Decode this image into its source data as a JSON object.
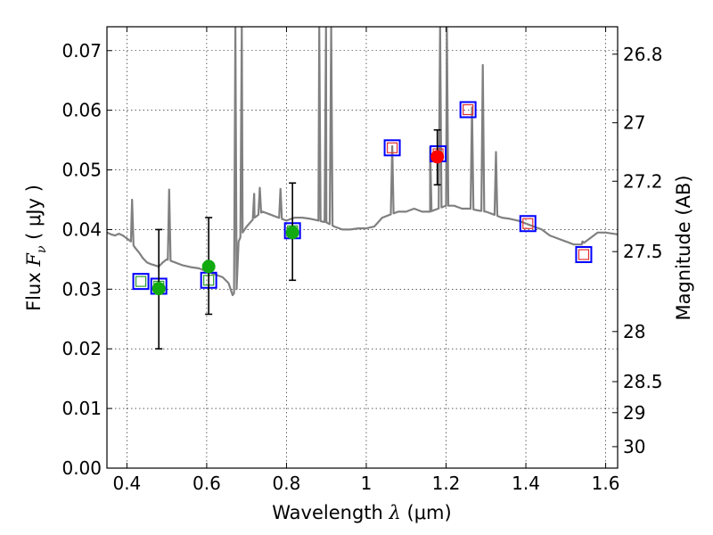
{
  "chart_data": {
    "type": "scatter",
    "xlabel": "Wavelength  λ (μm)",
    "ylabel": "Flux  F_ν  ( μJy )",
    "ylabel_parts": {
      "prefix": "Flux  ",
      "symbol": "F",
      "subscript": "ν",
      "suffix": "  ( μJy )"
    },
    "xlabel_parts": {
      "prefix": "Wavelength  ",
      "symbol": "λ",
      "suffix": " (μm)"
    },
    "y2label": "Magnitude (AB)",
    "xlim": [
      0.35,
      1.63
    ],
    "ylim": [
      0.0,
      0.074
    ],
    "grid": true,
    "x_ticks": [
      0.4,
      0.6,
      0.8,
      1.0,
      1.2,
      1.4,
      1.6
    ],
    "x_tick_labels": [
      "0.4",
      "0.6",
      "0.8",
      "1",
      "1.2",
      "1.4",
      "1.6"
    ],
    "y_ticks": [
      0.0,
      0.01,
      0.02,
      0.03,
      0.04,
      0.05,
      0.06,
      0.07
    ],
    "y_tick_labels": [
      "0.00",
      "0.01",
      "0.02",
      "0.03",
      "0.04",
      "0.05",
      "0.06",
      "0.07"
    ],
    "mag_ticks": [
      {
        "flux": 0.0694,
        "label": "26.8"
      },
      {
        "flux": 0.0579,
        "label": "27"
      },
      {
        "flux": 0.0481,
        "label": "27.2"
      },
      {
        "flux": 0.0363,
        "label": "27.5"
      },
      {
        "flux": 0.0229,
        "label": "28"
      },
      {
        "flux": 0.0145,
        "label": "28.5"
      },
      {
        "flux": 0.0093,
        "label": "29"
      },
      {
        "flux": 0.0036,
        "label": "30"
      }
    ],
    "series": [
      {
        "name": "template spectrum",
        "kind": "line",
        "color": "#808080",
        "x": [
          0.35,
          0.36,
          0.37,
          0.38,
          0.39,
          0.4,
          0.41,
          0.42,
          0.43,
          0.44,
          0.45,
          0.46,
          0.47,
          0.48,
          0.49,
          0.5,
          0.52,
          0.54,
          0.56,
          0.58,
          0.6,
          0.62,
          0.64,
          0.655,
          0.665,
          0.675,
          0.68,
          0.69,
          0.7,
          0.72,
          0.74,
          0.76,
          0.78,
          0.8,
          0.82,
          0.84,
          0.86,
          0.88,
          0.9,
          0.92,
          0.94,
          0.96,
          0.98,
          1.0,
          1.02,
          1.04,
          1.06,
          1.08,
          1.1,
          1.12,
          1.14,
          1.16,
          1.18,
          1.2,
          1.22,
          1.24,
          1.26,
          1.28,
          1.3,
          1.32,
          1.34,
          1.36,
          1.38,
          1.4,
          1.42,
          1.44,
          1.46,
          1.48,
          1.5,
          1.52,
          1.54,
          1.56,
          1.58,
          1.6,
          1.63
        ],
        "y": [
          0.0395,
          0.0392,
          0.039,
          0.0393,
          0.039,
          0.0385,
          0.038,
          0.037,
          0.0362,
          0.0352,
          0.0345,
          0.0342,
          0.034,
          0.0338,
          0.0345,
          0.035,
          0.0345,
          0.034,
          0.0337,
          0.0335,
          0.033,
          0.0325,
          0.032,
          0.031,
          0.029,
          0.03,
          0.038,
          0.0395,
          0.0405,
          0.042,
          0.043,
          0.0425,
          0.042,
          0.0415,
          0.042,
          0.042,
          0.0418,
          0.0415,
          0.0412,
          0.0405,
          0.04,
          0.04,
          0.0402,
          0.0402,
          0.0405,
          0.042,
          0.0425,
          0.043,
          0.043,
          0.0435,
          0.043,
          0.043,
          0.0435,
          0.044,
          0.044,
          0.0435,
          0.0435,
          0.0432,
          0.043,
          0.0425,
          0.042,
          0.0418,
          0.0415,
          0.041,
          0.0405,
          0.04,
          0.039,
          0.0385,
          0.038,
          0.0375,
          0.0375,
          0.0385,
          0.0395,
          0.0395,
          0.0392
        ]
      },
      {
        "name": "model photometry",
        "kind": "open-square",
        "edge_color": "#0000ff",
        "inner_color": "#2ca02c",
        "x": [
          0.435,
          0.48,
          0.605,
          0.815
        ],
        "y": [
          0.0313,
          0.0305,
          0.0315,
          0.0398
        ]
      },
      {
        "name": "model photometry (red)",
        "kind": "open-square",
        "edge_color": "#0000ff",
        "inner_color": "#e03030",
        "x": [
          1.065,
          1.18,
          1.255,
          1.405,
          1.545
        ],
        "y": [
          0.0537,
          0.0527,
          0.0601,
          0.041,
          0.0358
        ]
      },
      {
        "name": "observed (green)",
        "kind": "point",
        "color": "#11aa11",
        "x": [
          0.48,
          0.605,
          0.815
        ],
        "y": [
          0.0301,
          0.0338,
          0.0395
        ],
        "err_low": [
          0.0101,
          0.008,
          0.008
        ],
        "err_high": [
          0.0099,
          0.0082,
          0.0083
        ]
      },
      {
        "name": "observed (red)",
        "kind": "point",
        "color": "#ff0000",
        "x": [
          1.178
        ],
        "y": [
          0.0522
        ],
        "err_low": [
          0.0047
        ],
        "err_high": [
          0.0045
        ]
      }
    ],
    "emission_lines": [
      {
        "x": 0.413,
        "peak": 0.045
      },
      {
        "x": 0.506,
        "peak": 0.0467
      },
      {
        "x": 0.672,
        "peak": 0.074
      },
      {
        "x": 0.688,
        "peak": 0.074
      },
      {
        "x": 0.719,
        "peak": 0.046
      },
      {
        "x": 0.733,
        "peak": 0.047
      },
      {
        "x": 0.785,
        "peak": 0.0468
      },
      {
        "x": 0.882,
        "peak": 0.074
      },
      {
        "x": 0.899,
        "peak": 0.074
      },
      {
        "x": 0.912,
        "peak": 0.074
      },
      {
        "x": 1.065,
        "peak": 0.054
      },
      {
        "x": 1.16,
        "peak": 0.0538
      },
      {
        "x": 1.185,
        "peak": 0.074
      },
      {
        "x": 1.202,
        "peak": 0.074
      },
      {
        "x": 1.265,
        "peak": 0.0605
      },
      {
        "x": 1.292,
        "peak": 0.0676
      },
      {
        "x": 1.325,
        "peak": 0.053
      },
      {
        "x": 1.542,
        "peak": 0.038
      }
    ]
  }
}
